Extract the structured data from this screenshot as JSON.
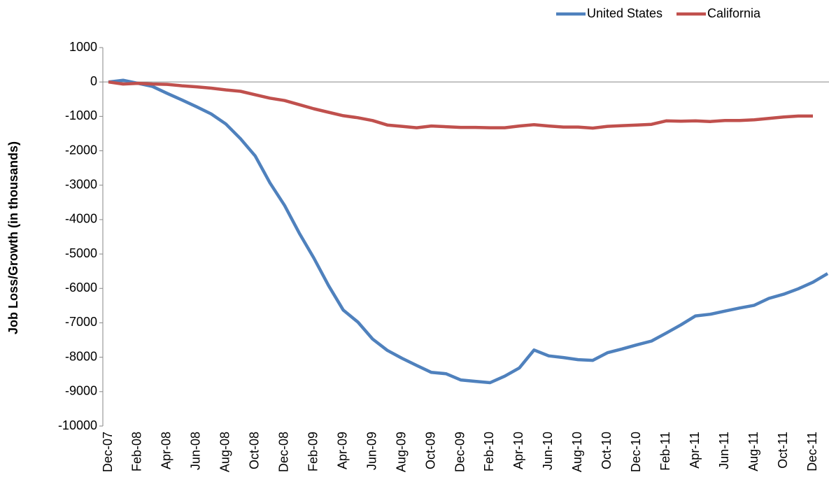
{
  "chart_data": {
    "type": "line",
    "y_label": "Job Loss/Growth (in thousands)",
    "categories": [
      "Dec-07",
      null,
      "Feb-08",
      null,
      "Apr-08",
      null,
      "Jun-08",
      null,
      "Aug-08",
      null,
      "Oct-08",
      null,
      "Dec-08",
      null,
      "Feb-09",
      null,
      "Apr-09",
      null,
      "Jun-09",
      null,
      "Aug-09",
      null,
      "Oct-09",
      null,
      "Dec-09",
      null,
      "Feb-10",
      null,
      "Apr-10",
      null,
      "Jun-10",
      null,
      "Aug-10",
      null,
      "Oct-10",
      null,
      "Dec-10",
      null,
      "Feb-11",
      null,
      "Apr-11",
      null,
      "Jun-11",
      null,
      "Aug-11",
      null,
      "Oct-11",
      null,
      "Dec-11",
      null
    ],
    "series": [
      {
        "name": "United States",
        "color": "#4f81bd",
        "values": [
          0,
          50,
          -40,
          -130,
          -330,
          -520,
          -720,
          -930,
          -1220,
          -1650,
          -2150,
          -2930,
          -3590,
          -4390,
          -5120,
          -5920,
          -6630,
          -6980,
          -7470,
          -7800,
          -8030,
          -8240,
          -8440,
          -8480,
          -8660,
          -8700,
          -8740,
          -8550,
          -8310,
          -7790,
          -7960,
          -8010,
          -8070,
          -8090,
          -7870,
          -7760,
          -7640,
          -7530,
          -7300,
          -7060,
          -6800,
          -6750,
          -6660,
          -6570,
          -6490,
          -6290,
          -6170,
          -6010,
          -5820,
          -5570
        ]
      },
      {
        "name": "California",
        "color": "#c0504d",
        "values": [
          0,
          -60,
          -40,
          -60,
          -70,
          -110,
          -140,
          -180,
          -230,
          -270,
          -370,
          -470,
          -540,
          -660,
          -780,
          -880,
          -980,
          -1040,
          -1120,
          -1250,
          -1290,
          -1330,
          -1280,
          -1300,
          -1320,
          -1320,
          -1330,
          -1330,
          -1280,
          -1240,
          -1280,
          -1310,
          -1310,
          -1340,
          -1290,
          -1270,
          -1250,
          -1230,
          -1130,
          -1140,
          -1130,
          -1150,
          -1120,
          -1120,
          -1100,
          -1060,
          -1020,
          -990,
          -990,
          null
        ]
      }
    ],
    "ylim": [
      -10000,
      1000
    ],
    "yticks": [
      -10000,
      -9000,
      -8000,
      -7000,
      -6000,
      -5000,
      -4000,
      -3000,
      -2000,
      -1000,
      0,
      1000
    ],
    "legend": "top-right"
  }
}
